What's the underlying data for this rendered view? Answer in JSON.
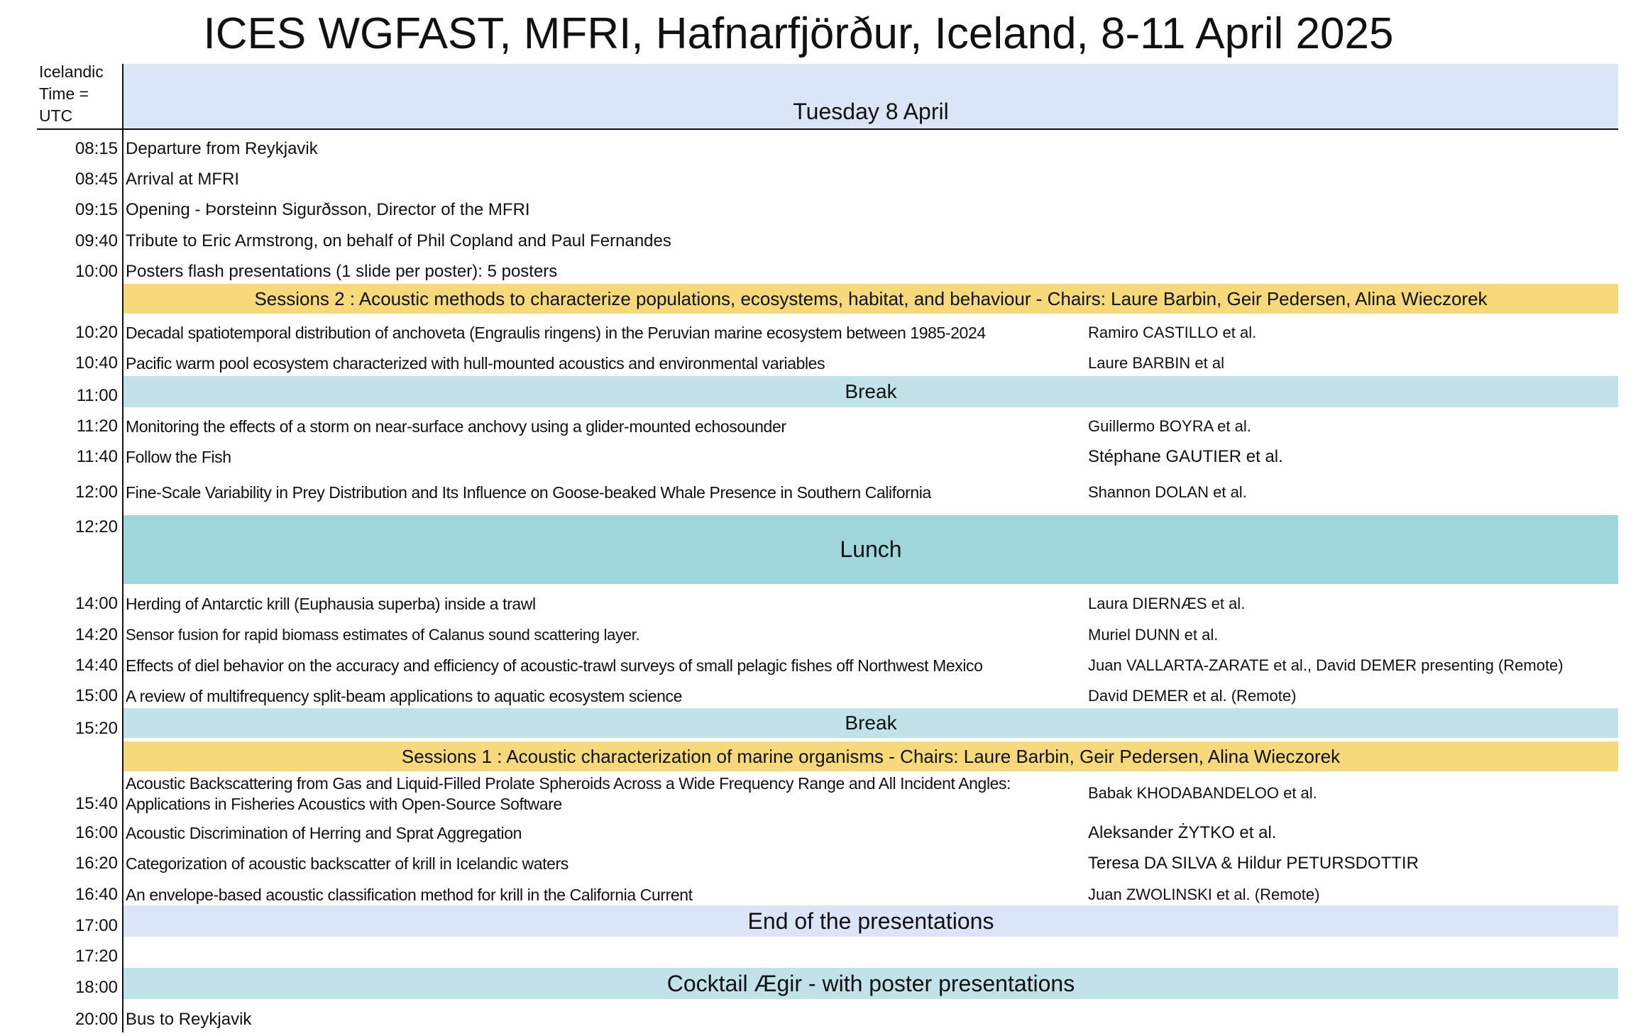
{
  "title": "ICES WGFAST, MFRI, Hafnarfjörður, Iceland, 8-11 April 2025",
  "corner_label": {
    "line1": "Icelandic",
    "line2": "Time =",
    "line3": "UTC"
  },
  "day": "Tuesday 8 April",
  "colors": {
    "day_band": "#dbe5f8",
    "session_band": "#f6d97a",
    "break_band": "#c0e2e8",
    "lunch_band": "#9fd6db"
  },
  "intro": [
    {
      "time": "08:15",
      "item": "Departure from Reykjavik"
    },
    {
      "time": "08:45",
      "item": "Arrival at MFRI"
    },
    {
      "time": "09:15",
      "item": "Opening - Þorsteinn Sigurðsson, Director of the MFRI"
    },
    {
      "time": "09:40",
      "item": "Tribute to Eric Armstrong, on behalf of Phil Copland and Paul Fernandes"
    },
    {
      "time": "10:00",
      "item": "Posters flash presentations (1 slide per poster): 5 posters"
    }
  ],
  "session2": {
    "header": "Sessions 2 : Acoustic methods to characterize populations, ecosystems, habitat, and behaviour - Chairs: Laure Barbin, Geir Pedersen, Alina Wieczorek",
    "talks_a": [
      {
        "time": "10:20",
        "title": "Decadal spatiotemporal distribution of anchoveta (Engraulis ringens) in the Peruvian marine ecosystem between 1985-2024",
        "author": "Ramiro CASTILLO et al."
      },
      {
        "time": "10:40",
        "title": "Pacific warm pool ecosystem characterized with hull-mounted acoustics and environmental variables",
        "author": "Laure BARBIN et al"
      }
    ],
    "break1": {
      "time": "11:00",
      "label": "Break"
    },
    "talks_b": [
      {
        "time": "11:20",
        "title": "Monitoring the effects of a storm on near-surface anchovy using a glider-mounted echosounder",
        "author": "Guillermo BOYRA et al."
      },
      {
        "time": "11:40",
        "title": "Follow the Fish",
        "author": "Stéphane GAUTIER et al."
      },
      {
        "time": "12:00",
        "title": "Fine-Scale Variability in Prey Distribution and Its Influence on Goose-beaked Whale Presence in Southern California",
        "author": "Shannon DOLAN et al."
      }
    ],
    "lunch": {
      "time": "12:20",
      "label": "Lunch"
    },
    "talks_c": [
      {
        "time": "14:00",
        "title": "Herding of Antarctic krill (Euphausia superba) inside a trawl",
        "author": "Laura DIERNÆS et al."
      },
      {
        "time": "14:20",
        "title": "Sensor fusion for rapid biomass estimates of Calanus sound scattering layer.",
        "author": "Muriel DUNN et al."
      },
      {
        "time": "14:40",
        "title": "Effects of diel behavior on the accuracy and efficiency of acoustic-trawl surveys of small pelagic fishes off Northwest Mexico",
        "author": "Juan VALLARTA-ZARATE et al., David DEMER presenting (Remote)"
      },
      {
        "time": "15:00",
        "title": "A review of multifrequency split-beam applications to aquatic ecosystem science",
        "author": "David DEMER et al. (Remote)"
      }
    ],
    "break2": {
      "time": "15:20",
      "label": "Break"
    }
  },
  "session1": {
    "header": "Sessions 1 : Acoustic characterization of marine organisms - Chairs: Laure Barbin, Geir Pedersen, Alina Wieczorek",
    "talks": [
      {
        "time": "15:40",
        "title": "Acoustic Backscattering from Gas and Liquid-Filled Prolate Spheroids Across a Wide Frequency Range and All Incident Angles: Applications in Fisheries Acoustics with Open-Source Software",
        "author": "Babak KHODABANDELOO et al."
      },
      {
        "time": "16:00",
        "title": "Acoustic Discrimination of Herring and Sprat Aggregation",
        "author": "Aleksander ŻYTKO et al."
      },
      {
        "time": "16:20",
        "title": "Categorization of acoustic backscatter of krill in Icelandic waters",
        "author": "Teresa DA SILVA & Hildur PETURSDOTTIR"
      },
      {
        "time": "16:40",
        "title": "An envelope-based acoustic classification method for krill in the California Current",
        "author": "Juan ZWOLINSKI et al. (Remote)"
      }
    ]
  },
  "evening": {
    "end": {
      "time": "17:00",
      "label": "End of the presentations"
    },
    "blank": {
      "time": "17:20"
    },
    "cocktail": {
      "time": "18:00",
      "label": "Cocktail Ægir - with poster presentations"
    },
    "bus": {
      "time": "20:00",
      "item": "Bus to Reykjavik"
    }
  }
}
